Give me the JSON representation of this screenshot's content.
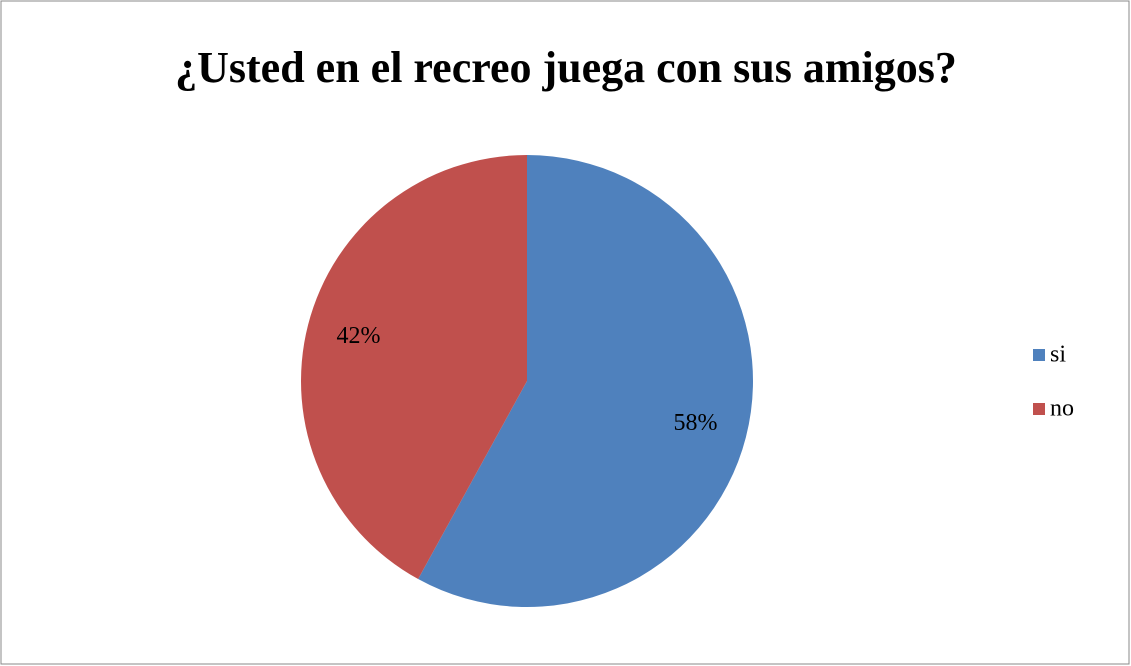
{
  "chart_data": {
    "type": "pie",
    "title": "¿Usted en el recreo juega con sus amigos?",
    "categories": [
      "si",
      "no"
    ],
    "values": [
      58,
      42
    ],
    "value_labels": [
      "58%",
      "42%"
    ],
    "colors": [
      "#4f81bd",
      "#c0504d"
    ],
    "legend": "right"
  }
}
